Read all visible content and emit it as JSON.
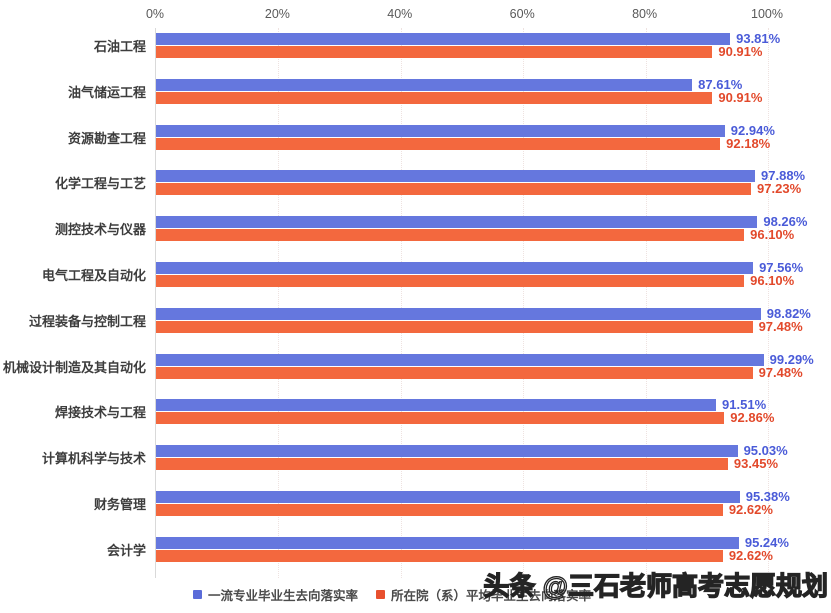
{
  "chart_data": {
    "type": "bar",
    "orientation": "horizontal",
    "title": "",
    "categories": [
      "石油工程",
      "油气储运工程",
      "资源勘查工程",
      "化学工程与工艺",
      "测控技术与仪器",
      "电气工程及自动化",
      "过程装备与控制工程",
      "机械设计制造及其自动化",
      "焊接技术与工程",
      "计算机科学与技术",
      "财务管理",
      "会计学"
    ],
    "series": [
      {
        "name": "一流专业毕业生去向落实率",
        "color": "#6577DE",
        "swatch_color": "#5B6CD9",
        "label_color": "#4A5BD8",
        "values": [
          93.81,
          87.61,
          92.94,
          97.88,
          98.26,
          97.56,
          98.82,
          99.29,
          91.51,
          95.03,
          95.38,
          95.24
        ]
      },
      {
        "name": "所在院（系）平均毕业生去向落实率",
        "color": "#F3683E",
        "swatch_color": "#E8502E",
        "label_color": "#E2492B",
        "values": [
          90.91,
          90.91,
          92.18,
          97.23,
          96.1,
          96.1,
          97.48,
          97.48,
          92.86,
          93.45,
          92.62,
          92.62
        ]
      }
    ],
    "x_axis": {
      "ticks": [
        "0%",
        "20%",
        "40%",
        "60%",
        "80%",
        "100%"
      ],
      "min": 0,
      "max": 100
    },
    "value_suffix": "%",
    "value_decimals": 2,
    "grid": "vertical-dotted",
    "legend_position": "bottom"
  },
  "watermark": {
    "text": "头条 @三石老师高考志愿规划"
  }
}
